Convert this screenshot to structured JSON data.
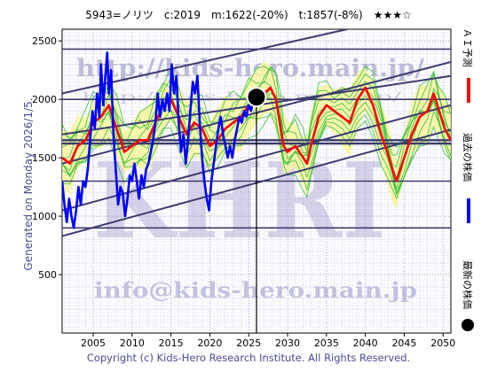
{
  "header": {
    "title": "5943=ノリツ　c:2019　m:1622(-20%)　t:1857(-8%)　★★★☆"
  },
  "footer": {
    "copyright": "Copyright (c) Kids-Hero Research Institute. All Rights Reserved."
  },
  "left_note": "Generated on Monday 2026/1/5.",
  "watermarks": {
    "url": "http://kids-hero.main.jp/",
    "url_small": "http://kids-hero.main.jp/",
    "mail": "info@kids-hero.main.jp",
    "big": "KHRI"
  },
  "legend": {
    "ai_forecast": "ＡＩ予測",
    "past_price": "過去の株価",
    "latest_price": "最新の株価"
  },
  "colors": {
    "ai_forecast": "#ff0000",
    "past_price": "#0000ff",
    "latest_price": "#000000",
    "band_fill": "#f5f5a0",
    "band_lines": "#33bb33",
    "trend_lines": "#3c3c6e",
    "grid": "#9999cc"
  },
  "chart_data": {
    "type": "line",
    "xlim": [
      2001,
      2051
    ],
    "ylim": [
      0,
      2600
    ],
    "x_ticks": [
      2005,
      2010,
      2015,
      2020,
      2025,
      2030,
      2035,
      2040,
      2045,
      2050
    ],
    "y_ticks": [
      500,
      1000,
      1500,
      2000,
      2500
    ],
    "latest_point": {
      "x": 2026.0,
      "y": 2019
    },
    "horizontal_levels": [
      2430,
      2000,
      1650,
      1622,
      1300,
      900
    ],
    "trend_channels": [
      {
        "from": [
          2001,
          2050
        ],
        "to": [
          2051,
          2800
        ]
      },
      {
        "from": [
          2001,
          1700
        ],
        "to": [
          2051,
          2200
        ]
      },
      {
        "from": [
          2001,
          1450
        ],
        "to": [
          2051,
          2320
        ]
      },
      {
        "from": [
          2001,
          1050
        ],
        "to": [
          2051,
          1950
        ]
      },
      {
        "from": [
          2001,
          830
        ],
        "to": [
          2051,
          1740
        ]
      }
    ],
    "series": [
      {
        "key": "past",
        "name": "過去の株価",
        "points": [
          [
            2001.0,
            1300
          ],
          [
            2001.3,
            1100
          ],
          [
            2001.6,
            950
          ],
          [
            2001.9,
            1150
          ],
          [
            2002.2,
            1000
          ],
          [
            2002.5,
            900
          ],
          [
            2002.8,
            1050
          ],
          [
            2003.1,
            1250
          ],
          [
            2003.4,
            1100
          ],
          [
            2003.7,
            1300
          ],
          [
            2004.0,
            1250
          ],
          [
            2004.3,
            1400
          ],
          [
            2004.6,
            1650
          ],
          [
            2004.9,
            1900
          ],
          [
            2005.2,
            1750
          ],
          [
            2005.5,
            2050
          ],
          [
            2005.8,
            1850
          ],
          [
            2006.0,
            2300
          ],
          [
            2006.3,
            1950
          ],
          [
            2006.5,
            2150
          ],
          [
            2006.8,
            2400
          ],
          [
            2007.0,
            2050
          ],
          [
            2007.3,
            2250
          ],
          [
            2007.6,
            1700
          ],
          [
            2007.9,
            1400
          ],
          [
            2008.2,
            1100
          ],
          [
            2008.5,
            1250
          ],
          [
            2008.8,
            1200
          ],
          [
            2009.1,
            1000
          ],
          [
            2009.4,
            1150
          ],
          [
            2009.7,
            1350
          ],
          [
            2010.0,
            1300
          ],
          [
            2010.3,
            1450
          ],
          [
            2010.6,
            1300
          ],
          [
            2010.9,
            1150
          ],
          [
            2011.2,
            1350
          ],
          [
            2011.5,
            1250
          ],
          [
            2011.8,
            1400
          ],
          [
            2012.1,
            1450
          ],
          [
            2012.4,
            1550
          ],
          [
            2012.7,
            1650
          ],
          [
            2013.0,
            1800
          ],
          [
            2013.3,
            2050
          ],
          [
            2013.6,
            1850
          ],
          [
            2013.9,
            2000
          ],
          [
            2014.2,
            1900
          ],
          [
            2014.5,
            2050
          ],
          [
            2014.8,
            1900
          ],
          [
            2015.1,
            2300
          ],
          [
            2015.4,
            2050
          ],
          [
            2015.7,
            2200
          ],
          [
            2016.0,
            1800
          ],
          [
            2016.3,
            1550
          ],
          [
            2016.6,
            1700
          ],
          [
            2016.9,
            1450
          ],
          [
            2017.2,
            1650
          ],
          [
            2017.5,
            1900
          ],
          [
            2017.8,
            2150
          ],
          [
            2018.1,
            2050
          ],
          [
            2018.4,
            2200
          ],
          [
            2018.7,
            1800
          ],
          [
            2019.0,
            1500
          ],
          [
            2019.3,
            1300
          ],
          [
            2019.6,
            1150
          ],
          [
            2019.9,
            1050
          ],
          [
            2020.2,
            1300
          ],
          [
            2020.5,
            1450
          ],
          [
            2020.8,
            1600
          ],
          [
            2021.1,
            1750
          ],
          [
            2021.4,
            1850
          ],
          [
            2021.7,
            1700
          ],
          [
            2022.0,
            1600
          ],
          [
            2022.3,
            1500
          ],
          [
            2022.6,
            1600
          ],
          [
            2022.9,
            1500
          ],
          [
            2023.2,
            1650
          ],
          [
            2023.5,
            1750
          ],
          [
            2023.8,
            1850
          ],
          [
            2024.1,
            1800
          ],
          [
            2024.4,
            1900
          ],
          [
            2024.7,
            1850
          ],
          [
            2025.0,
            1950
          ],
          [
            2025.3,
            1900
          ],
          [
            2025.6,
            2000
          ],
          [
            2026.0,
            2019
          ]
        ]
      },
      {
        "key": "forecast",
        "name": "ＡＩ予測",
        "points": [
          [
            2001.0,
            1500
          ],
          [
            2002.0,
            1450
          ],
          [
            2003.0,
            1600
          ],
          [
            2004.0,
            1650
          ],
          [
            2005.0,
            1800
          ],
          [
            2006.0,
            1850
          ],
          [
            2007.0,
            1950
          ],
          [
            2008.0,
            1750
          ],
          [
            2009.0,
            1550
          ],
          [
            2010.0,
            1600
          ],
          [
            2011.0,
            1650
          ],
          [
            2012.0,
            1650
          ],
          [
            2013.0,
            1800
          ],
          [
            2014.0,
            1950
          ],
          [
            2015.0,
            2000
          ],
          [
            2016.0,
            1850
          ],
          [
            2017.0,
            1700
          ],
          [
            2018.0,
            1800
          ],
          [
            2019.0,
            1750
          ],
          [
            2020.0,
            1600
          ],
          [
            2021.0,
            1650
          ],
          [
            2022.0,
            1750
          ],
          [
            2023.0,
            1800
          ],
          [
            2024.0,
            1850
          ],
          [
            2025.0,
            1950
          ],
          [
            2026.0,
            1980
          ],
          [
            2027.0,
            2050
          ],
          [
            2027.8,
            2100
          ],
          [
            2028.5,
            2000
          ],
          [
            2029.0,
            1800
          ],
          [
            2029.5,
            1600
          ],
          [
            2030.0,
            1550
          ],
          [
            2031.0,
            1600
          ],
          [
            2032.0,
            1500
          ],
          [
            2032.5,
            1450
          ],
          [
            2033.0,
            1600
          ],
          [
            2034.0,
            1850
          ],
          [
            2035.0,
            1950
          ],
          [
            2036.0,
            1900
          ],
          [
            2037.0,
            1850
          ],
          [
            2038.0,
            1800
          ],
          [
            2039.0,
            2000
          ],
          [
            2040.0,
            2100
          ],
          [
            2041.0,
            1950
          ],
          [
            2042.0,
            1700
          ],
          [
            2042.8,
            1550
          ],
          [
            2043.5,
            1400
          ],
          [
            2044.0,
            1300
          ],
          [
            2045.0,
            1500
          ],
          [
            2046.0,
            1700
          ],
          [
            2047.0,
            1850
          ],
          [
            2048.0,
            1900
          ],
          [
            2048.8,
            2050
          ],
          [
            2049.5,
            1900
          ],
          [
            2050.2,
            1750
          ],
          [
            2051.0,
            1650
          ]
        ]
      }
    ]
  }
}
